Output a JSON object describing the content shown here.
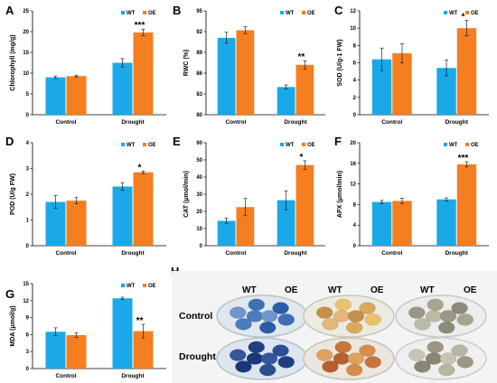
{
  "colors": {
    "wt": "#1aa9e8",
    "oe": "#f47e20",
    "axis": "#000000",
    "errorbar": "#222222"
  },
  "legend": {
    "wt": "WT",
    "oe": "OE"
  },
  "chart_data": [
    {
      "letter": "A",
      "type": "bar",
      "categories": [
        "Control",
        "Drought"
      ],
      "series": [
        {
          "name": "WT",
          "values": [
            9.0,
            12.5
          ],
          "errors": [
            0.3,
            1.0
          ]
        },
        {
          "name": "OE",
          "values": [
            9.3,
            19.8
          ],
          "errors": [
            0.2,
            0.8
          ]
        }
      ],
      "ylabel": "Chlorophyll (mg/g)",
      "ylim": [
        0,
        25
      ],
      "yticks": [
        "0",
        "5",
        "10",
        "15",
        "20",
        "25"
      ],
      "significance": [
        "",
        "***"
      ]
    },
    {
      "letter": "B",
      "type": "bar",
      "categories": [
        "Control",
        "Drought"
      ],
      "series": [
        {
          "name": "WT",
          "values": [
            91.1,
            84.0
          ],
          "errors": [
            0.8,
            0.3
          ]
        },
        {
          "name": "OE",
          "values": [
            92.2,
            87.2
          ],
          "errors": [
            0.5,
            0.6
          ]
        }
      ],
      "ylabel": "RWC (%)",
      "ylim": [
        80,
        95
      ],
      "yticks": [
        "80",
        "83",
        "86",
        "89",
        "92",
        "95"
      ],
      "significance": [
        "",
        "**"
      ]
    },
    {
      "letter": "C",
      "type": "bar",
      "categories": [
        "Control",
        "Drought"
      ],
      "series": [
        {
          "name": "WT",
          "values": [
            6.4,
            5.4
          ],
          "errors": [
            1.3,
            0.9
          ]
        },
        {
          "name": "OE",
          "values": [
            7.1,
            10.0
          ],
          "errors": [
            1.1,
            0.9
          ]
        }
      ],
      "ylabel": "SOD (U/g-1 FW)",
      "ylim": [
        0,
        12
      ],
      "yticks": [
        "0",
        "2",
        "4",
        "6",
        "8",
        "10",
        "12"
      ],
      "significance": [
        "",
        "*"
      ]
    },
    {
      "letter": "D",
      "type": "bar",
      "categories": [
        "Control",
        "Drought"
      ],
      "series": [
        {
          "name": "WT",
          "values": [
            1.7,
            2.3
          ],
          "errors": [
            0.25,
            0.15
          ]
        },
        {
          "name": "OE",
          "values": [
            1.75,
            2.85
          ],
          "errors": [
            0.12,
            0.05
          ]
        }
      ],
      "ylabel": "POD (U/g FW)",
      "ylim": [
        0,
        4
      ],
      "yticks": [
        "0",
        "1",
        "2",
        "3",
        "4"
      ],
      "significance": [
        "",
        "*"
      ]
    },
    {
      "letter": "E",
      "type": "bar",
      "categories": [
        "Control",
        "Drought"
      ],
      "series": [
        {
          "name": "WT",
          "values": [
            14.5,
            26.5
          ],
          "errors": [
            1.5,
            5.5
          ]
        },
        {
          "name": "OE",
          "values": [
            22.5,
            47.0
          ],
          "errors": [
            5.0,
            2.5
          ]
        }
      ],
      "ylabel": "CAT (μmol/min)",
      "ylim": [
        0,
        60
      ],
      "yticks": [
        "0",
        "10",
        "20",
        "30",
        "40",
        "50",
        "60"
      ],
      "significance": [
        "",
        "*"
      ]
    },
    {
      "letter": "F",
      "type": "bar",
      "categories": [
        "Control",
        "Drought"
      ],
      "series": [
        {
          "name": "WT",
          "values": [
            8.5,
            9.0
          ],
          "errors": [
            0.3,
            0.3
          ]
        },
        {
          "name": "OE",
          "values": [
            8.7,
            15.8
          ],
          "errors": [
            0.5,
            0.5
          ]
        }
      ],
      "ylabel": "APX (μmol/min)",
      "ylim": [
        0,
        20
      ],
      "yticks": [
        "0",
        "4",
        "8",
        "12",
        "16",
        "20"
      ],
      "significance": [
        "",
        "***"
      ]
    },
    {
      "letter": "G",
      "type": "bar",
      "categories": [
        "Control",
        "Drought"
      ],
      "series": [
        {
          "name": "WT",
          "values": [
            6.5,
            12.4
          ],
          "errors": [
            0.7,
            0.2
          ]
        },
        {
          "name": "OE",
          "values": [
            5.9,
            6.6
          ],
          "errors": [
            0.4,
            1.2
          ]
        }
      ],
      "ylabel": "MDA (μmol/g)",
      "ylim": [
        0,
        15
      ],
      "yticks": [
        "0",
        "3",
        "6",
        "9",
        "12",
        "15"
      ],
      "significance": [
        "",
        "**"
      ]
    }
  ],
  "panel_h": {
    "letter": "H",
    "column_labels": [
      "WT",
      "OE",
      "WT",
      "OE",
      "WT",
      "OE"
    ],
    "row_labels": [
      "Control",
      "Drought"
    ],
    "dishes": [
      {
        "stain": "blue"
      },
      {
        "stain": "yellow"
      },
      {
        "stain": "gray"
      },
      {
        "stain": "blue-dark"
      },
      {
        "stain": "yellow-brown"
      },
      {
        "stain": "gray-light"
      }
    ]
  }
}
